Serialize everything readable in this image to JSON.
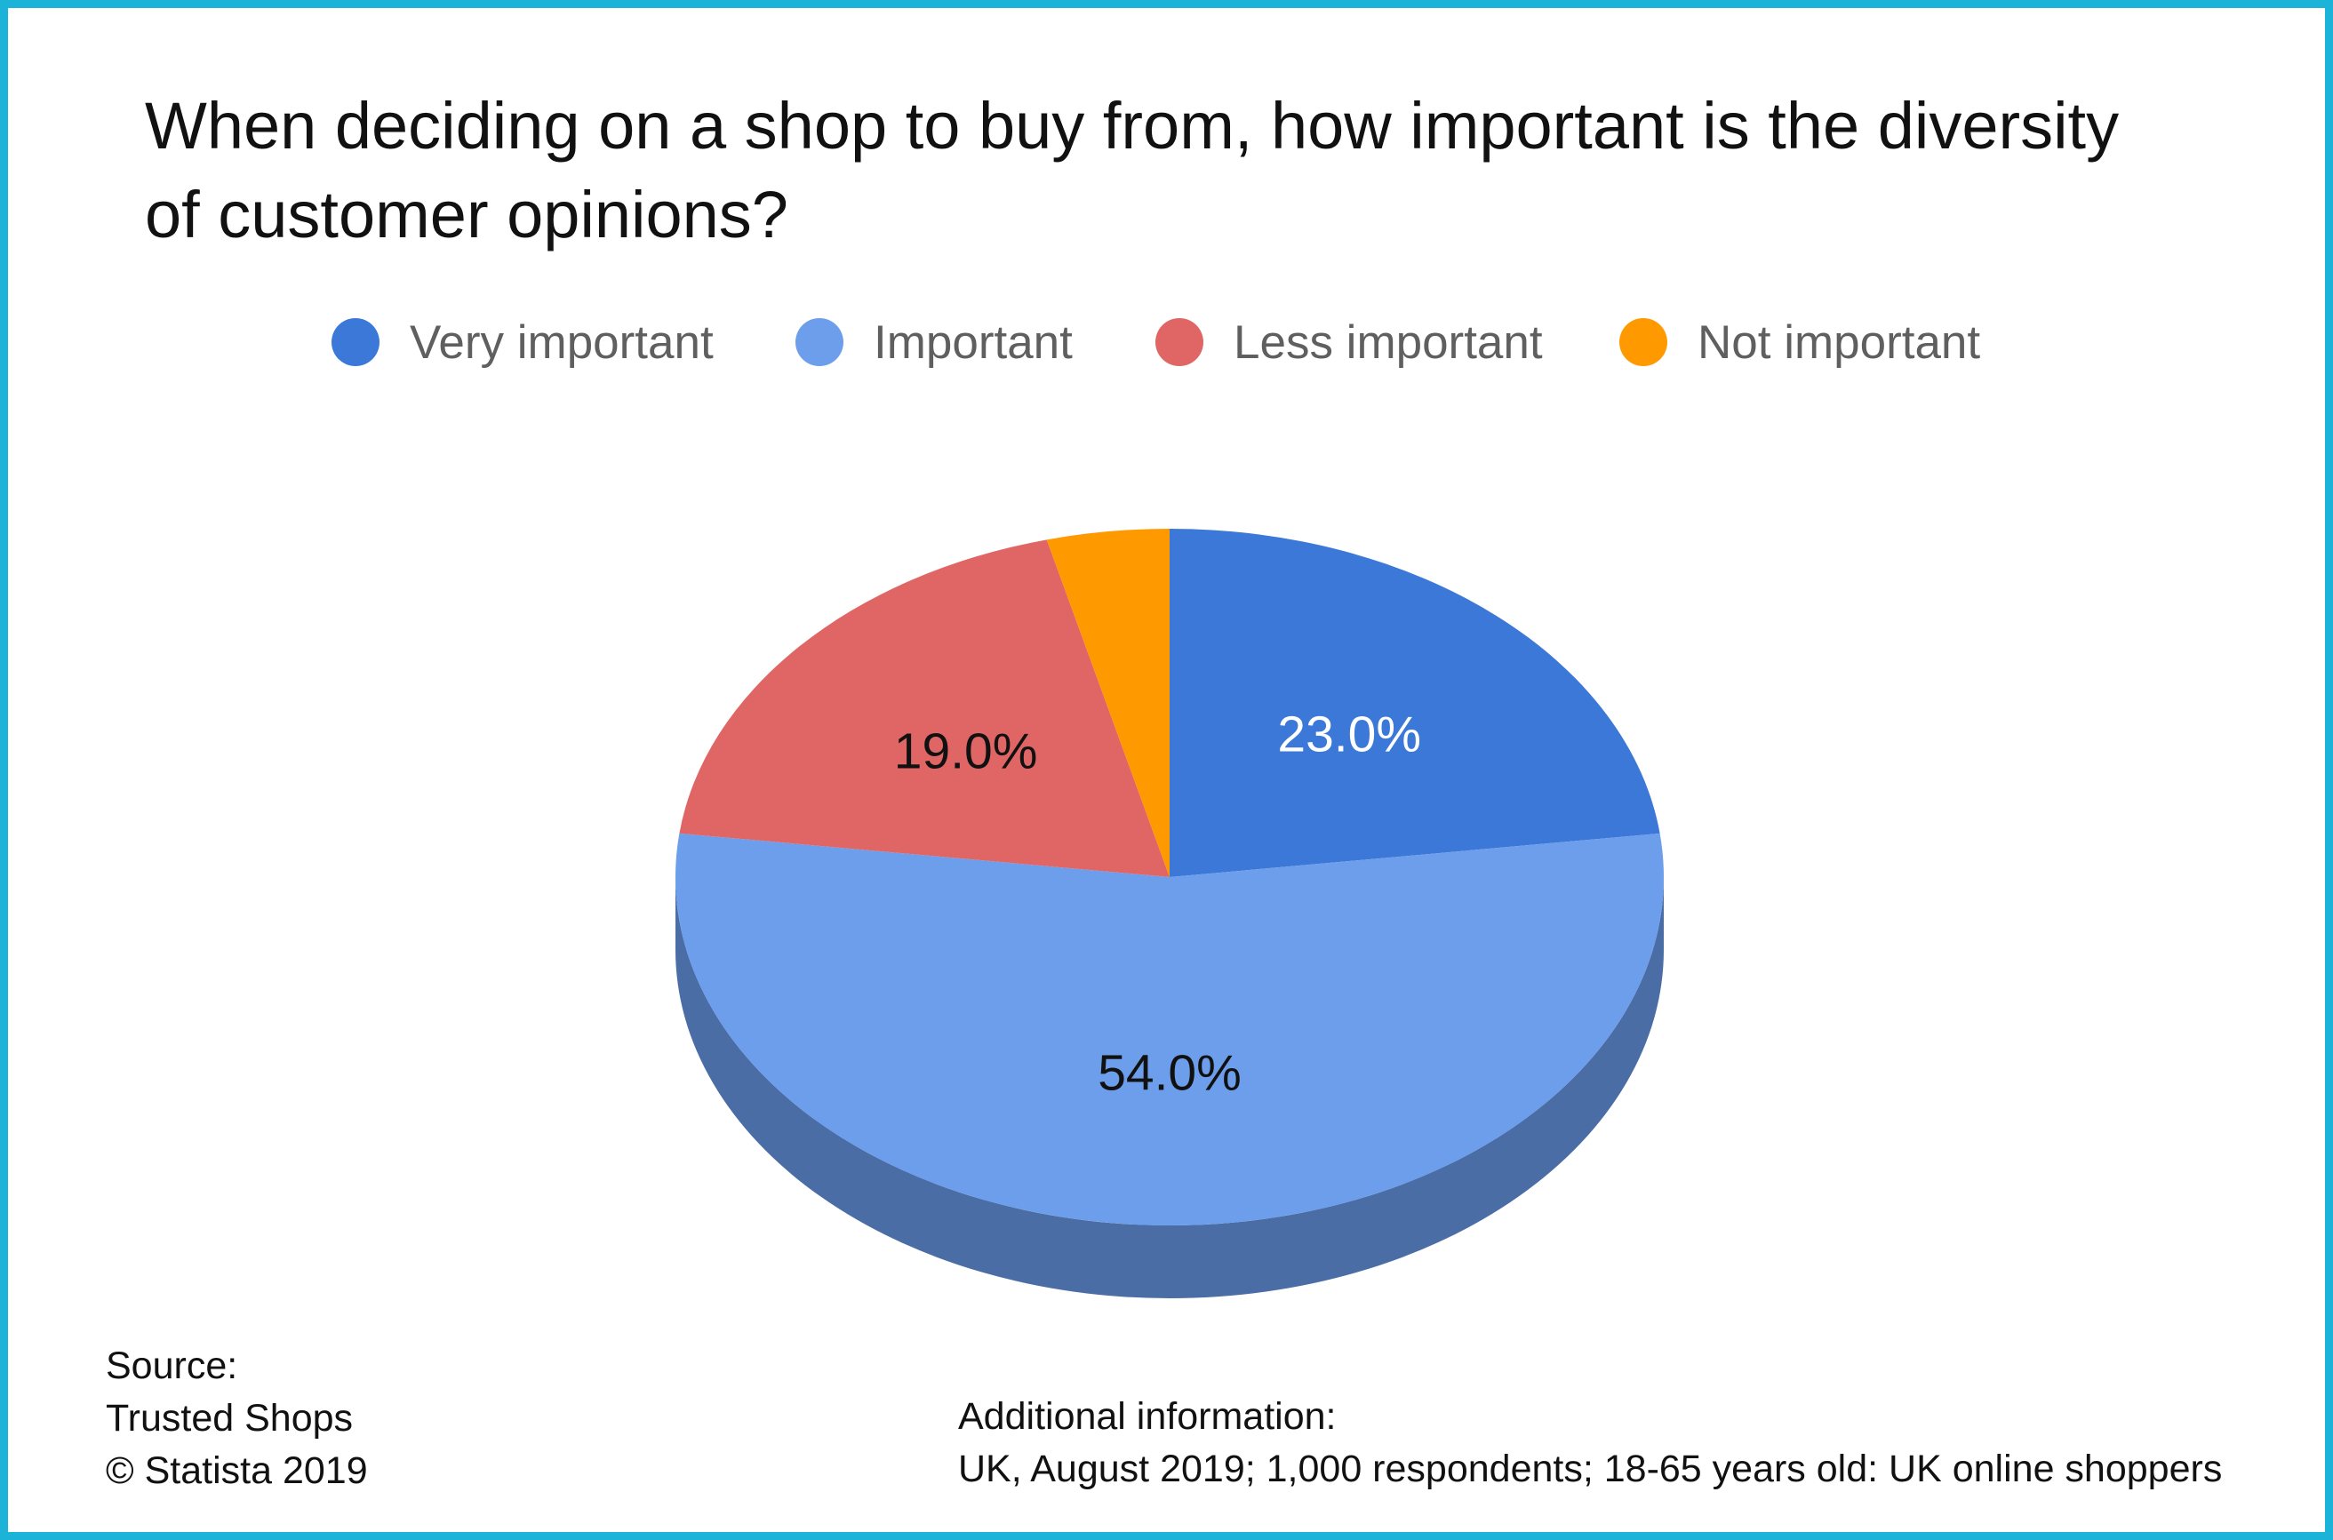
{
  "title": "When deciding on a shop to buy from, how important is the diversity of customer opinions?",
  "colors": {
    "frame": "#1bb4d8",
    "very_important": "#3b78d8",
    "important": "#6d9eeb",
    "less_important": "#e06666",
    "not_important": "#ff9900",
    "side_important": "#4a6da6"
  },
  "chart_data": {
    "type": "pie",
    "title": "When deciding on a shop to buy from, how important is the diversity of customer opinions?",
    "style": "3d",
    "legend_position": "top",
    "slices": [
      {
        "label": "Very important",
        "value": 23.0,
        "display": "23.0%",
        "color": "#3b78d8",
        "label_color": "#ffffff"
      },
      {
        "label": "Important",
        "value": 54.0,
        "display": "54.0%",
        "color": "#6d9eeb",
        "label_color": "#111111"
      },
      {
        "label": "Less important",
        "value": 19.0,
        "display": "19.0%",
        "color": "#e06666",
        "label_color": "#111111"
      },
      {
        "label": "Not important",
        "value": 4.0,
        "display": "",
        "color": "#ff9900",
        "label_color": "#111111"
      }
    ]
  },
  "legend": [
    {
      "label": "Very important",
      "icon": "circle-swatch"
    },
    {
      "label": "Important",
      "icon": "circle-swatch"
    },
    {
      "label": "Less important",
      "icon": "circle-swatch"
    },
    {
      "label": "Not important",
      "icon": "circle-swatch"
    }
  ],
  "source": {
    "heading": "Source:",
    "name": "Trusted Shops",
    "copyright": "© Statista 2019"
  },
  "additional": {
    "heading": "Additional information:",
    "text": "UK, August 2019; 1,000 respondents; 18-65 years old: UK online shoppers"
  }
}
